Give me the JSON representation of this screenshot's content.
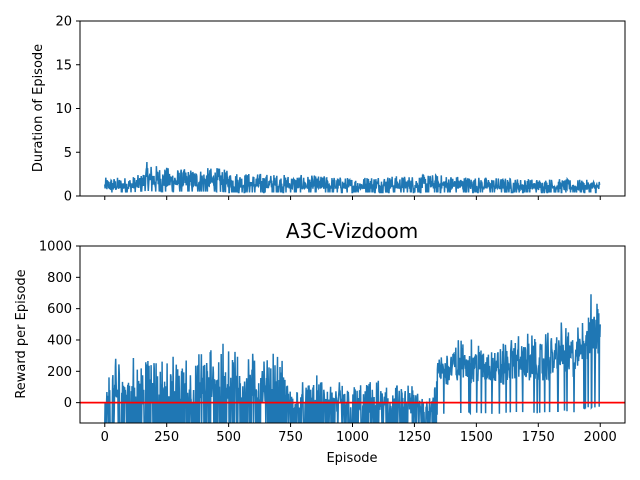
{
  "chart_data": [
    {
      "type": "line",
      "title": "",
      "xlabel": "",
      "ylabel": "Duration of Episode",
      "xlim": [
        -100,
        2100
      ],
      "ylim": [
        0,
        20
      ],
      "xticks": [
        0,
        250,
        500,
        750,
        1000,
        1250,
        1500,
        1750,
        2000
      ],
      "xtick_labels_visible": false,
      "yticks": [
        0,
        5,
        10,
        15,
        20
      ],
      "ytick_labels": [
        "0",
        "5",
        "10",
        "15",
        "20"
      ],
      "grid": false,
      "series": [
        {
          "color": "#1f77b4",
          "x": [
            0,
            100,
            150,
            170,
            200,
            250,
            300,
            350,
            400,
            450,
            500,
            600,
            700,
            800,
            900,
            1000,
            1100,
            1200,
            1300,
            1400,
            1500,
            1600,
            1700,
            1800,
            1900,
            2000
          ],
          "low": [
            0.4,
            0.4,
            0.5,
            0.6,
            0.5,
            0.5,
            0.5,
            0.5,
            0.5,
            0.5,
            0.4,
            0.4,
            0.4,
            0.4,
            0.4,
            0.4,
            0.4,
            0.4,
            0.4,
            0.4,
            0.4,
            0.4,
            0.4,
            0.4,
            0.4,
            0.4
          ],
          "high": [
            2.1,
            2.2,
            2.5,
            3.9,
            3.6,
            3.3,
            3.1,
            3.1,
            3.2,
            3.3,
            2.9,
            2.6,
            2.5,
            2.4,
            2.3,
            2.1,
            2.4,
            2.3,
            2.5,
            2.4,
            2.2,
            2.1,
            2.0,
            2.0,
            1.9,
            1.8
          ]
        }
      ]
    },
    {
      "type": "line",
      "title": "A3C-Vizdoom",
      "xlabel": "Episode",
      "ylabel": "Reward per Episode",
      "xlim": [
        -100,
        2100
      ],
      "ylim": [
        -130,
        1000
      ],
      "xticks": [
        0,
        250,
        500,
        750,
        1000,
        1250,
        1500,
        1750,
        2000
      ],
      "xtick_labels": [
        "0",
        "250",
        "500",
        "750",
        "1000",
        "1250",
        "1500",
        "1750",
        "2000"
      ],
      "yticks": [
        0,
        200,
        400,
        600,
        800,
        1000
      ],
      "ytick_labels": [
        "0",
        "200",
        "400",
        "600",
        "800",
        "1000"
      ],
      "grid": false,
      "reference_line": {
        "y": 0,
        "color": "#ff0000"
      },
      "series": [
        {
          "color": "#1f77b4",
          "x": [
            0,
            20,
            50,
            100,
            150,
            200,
            250,
            300,
            350,
            400,
            450,
            500,
            550,
            600,
            650,
            700,
            750,
            800,
            850,
            900,
            950,
            1000,
            1050,
            1100,
            1150,
            1200,
            1250,
            1300,
            1350,
            1400,
            1450,
            1500,
            1550,
            1600,
            1650,
            1700,
            1750,
            1800,
            1850,
            1900,
            1950,
            2000
          ],
          "low": [
            -130,
            -130,
            -130,
            -130,
            -130,
            -130,
            -130,
            -130,
            -130,
            -130,
            -130,
            -130,
            -130,
            -130,
            -130,
            -130,
            -130,
            -130,
            -130,
            -130,
            -130,
            -130,
            -130,
            -130,
            -130,
            -130,
            -130,
            -130,
            -130,
            -130,
            -130,
            -130,
            -130,
            -130,
            -130,
            -130,
            -130,
            -130,
            -130,
            -130,
            -130,
            -130
          ],
          "high": [
            40,
            270,
            350,
            310,
            370,
            340,
            330,
            380,
            330,
            430,
            420,
            410,
            430,
            390,
            330,
            400,
            160,
            150,
            190,
            160,
            170,
            150,
            160,
            170,
            150,
            130,
            140,
            120,
            350,
            410,
            450,
            430,
            400,
            390,
            470,
            460,
            430,
            480,
            550,
            470,
            720,
            760
          ]
        }
      ]
    }
  ]
}
